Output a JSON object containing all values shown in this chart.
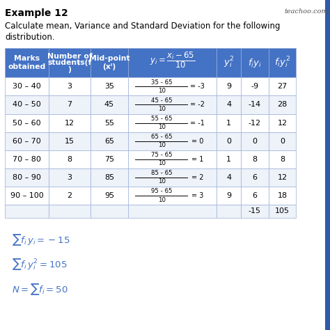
{
  "title": "Example 12",
  "subtitle_line1": "Calculate mean, Variance and Standard Deviation for the following",
  "subtitle_line2": "distribution.",
  "watermark": "teachoo.com",
  "header_bg": "#4472C4",
  "row_bg_even": "#EEF2F9",
  "row_bg_odd": "#FFFFFF",
  "border_color": "#9AB0D8",
  "fraction_data": [
    [
      "35 - 65",
      "10",
      "= -3"
    ],
    [
      "45 - 65",
      "10",
      "= -2"
    ],
    [
      "55 - 65",
      "10",
      "= -1"
    ],
    [
      "65 - 65",
      "10",
      "= 0"
    ],
    [
      "75 - 65",
      "10",
      "= 1"
    ],
    [
      "85 - 65",
      "10",
      "= 2"
    ],
    [
      "95 - 65",
      "10",
      "= 3"
    ]
  ],
  "col1": [
    "30 - 40",
    "40 - 50",
    "50 - 60",
    "60 - 70",
    "70 - 80",
    "80 - 90",
    "90 - 100"
  ],
  "col2": [
    "3",
    "7",
    "12",
    "15",
    "8",
    "3",
    "2"
  ],
  "col3": [
    "35",
    "45",
    "55",
    "65",
    "75",
    "85",
    "95"
  ],
  "col5": [
    "9",
    "4",
    "1",
    "0",
    "1",
    "4",
    "9"
  ],
  "col6": [
    "-9",
    "-14",
    "-12",
    "0",
    "8",
    "6",
    "6"
  ],
  "col7": [
    "27",
    "28",
    "12",
    "0",
    "8",
    "12",
    "18"
  ],
  "total_col6": "-15",
  "total_col7": "105",
  "summary_color": "#4472C4",
  "title_fontsize": 10,
  "subtitle_fontsize": 8.5,
  "header_fontsize": 7.8,
  "cell_fontsize": 8,
  "summary_fontsize": 9.5
}
